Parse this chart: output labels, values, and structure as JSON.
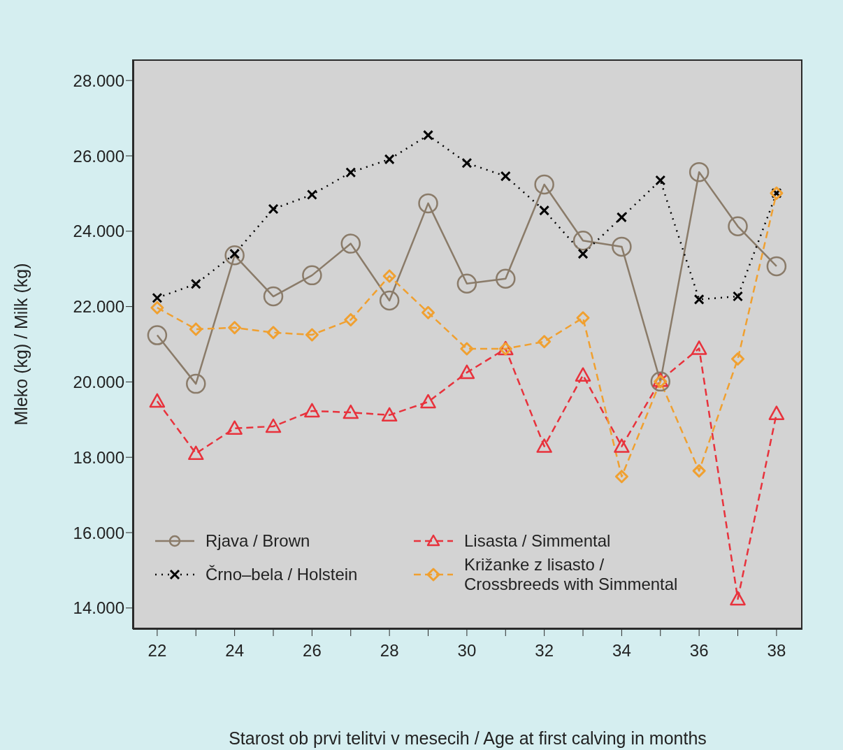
{
  "chart_data": {
    "type": "line",
    "xlabel": "Starost ob prvi telitvi v mesecih / Age at first calving in months",
    "ylabel": "Mleko (kg) / Milk (kg)",
    "x": [
      22,
      23,
      24,
      25,
      26,
      27,
      28,
      29,
      30,
      31,
      32,
      33,
      34,
      35,
      36,
      37,
      38
    ],
    "series": [
      {
        "name": "Rjava / Brown",
        "color": "#8a7b69",
        "marker": "circle",
        "line_style": "solid",
        "values": [
          21240,
          19950,
          23360,
          22270,
          22830,
          23670,
          22160,
          24740,
          22610,
          22740,
          25240,
          23750,
          23590,
          20010,
          25570,
          24130,
          23070
        ]
      },
      {
        "name": "Črno–bela / Holstein",
        "color": "#000000",
        "marker": "cross",
        "line_style": "dotted",
        "values": [
          22230,
          22600,
          23400,
          24590,
          24970,
          25560,
          25910,
          26550,
          25810,
          25460,
          24550,
          23400,
          24370,
          25350,
          22190,
          22270,
          25010
        ]
      },
      {
        "name": "Lisasta / Simmental",
        "color": "#e8323c",
        "marker": "triangle",
        "line_style": "dashed",
        "values": [
          19490,
          18100,
          18770,
          18820,
          19230,
          19190,
          19120,
          19470,
          20250,
          20880,
          18290,
          20180,
          18290,
          20040,
          20890,
          14240,
          19160
        ]
      },
      {
        "name": "Križanke z lisasto /\nCrossbreeds with Simmental",
        "color": "#f0a030",
        "marker": "diamond",
        "line_style": "dashed",
        "values": [
          21970,
          21400,
          21440,
          21310,
          21250,
          21650,
          22810,
          21840,
          20880,
          20880,
          21070,
          21700,
          17490,
          20010,
          17640,
          20610,
          25010
        ]
      }
    ],
    "xlim": [
      21.37,
      38.67
    ],
    "xticks": [
      22,
      {
        "value": 23,
        "label": null
      },
      24,
      {
        "value": 25,
        "label": null
      },
      26,
      {
        "value": 27,
        "label": null
      },
      28,
      {
        "value": 29,
        "label": null
      },
      30,
      {
        "value": 31,
        "label": null
      },
      32,
      {
        "value": 33,
        "label": null
      },
      34,
      {
        "value": 35,
        "label": null
      },
      36,
      {
        "value": 37,
        "label": null
      },
      38
    ],
    "ylim": [
      13440,
      28560
    ],
    "yticks": [
      {
        "value": 14000,
        "label": "14.000"
      },
      {
        "value": 16000,
        "label": "16.000"
      },
      {
        "value": 18000,
        "label": "18.000"
      },
      {
        "value": 20000,
        "label": "20.000"
      },
      {
        "value": 22000,
        "label": "22.000"
      },
      {
        "value": 24000,
        "label": "24.000"
      },
      {
        "value": 26000,
        "label": "26.000"
      },
      {
        "value": 28000,
        "label": "28.000"
      }
    ],
    "legend": "bottom left"
  }
}
